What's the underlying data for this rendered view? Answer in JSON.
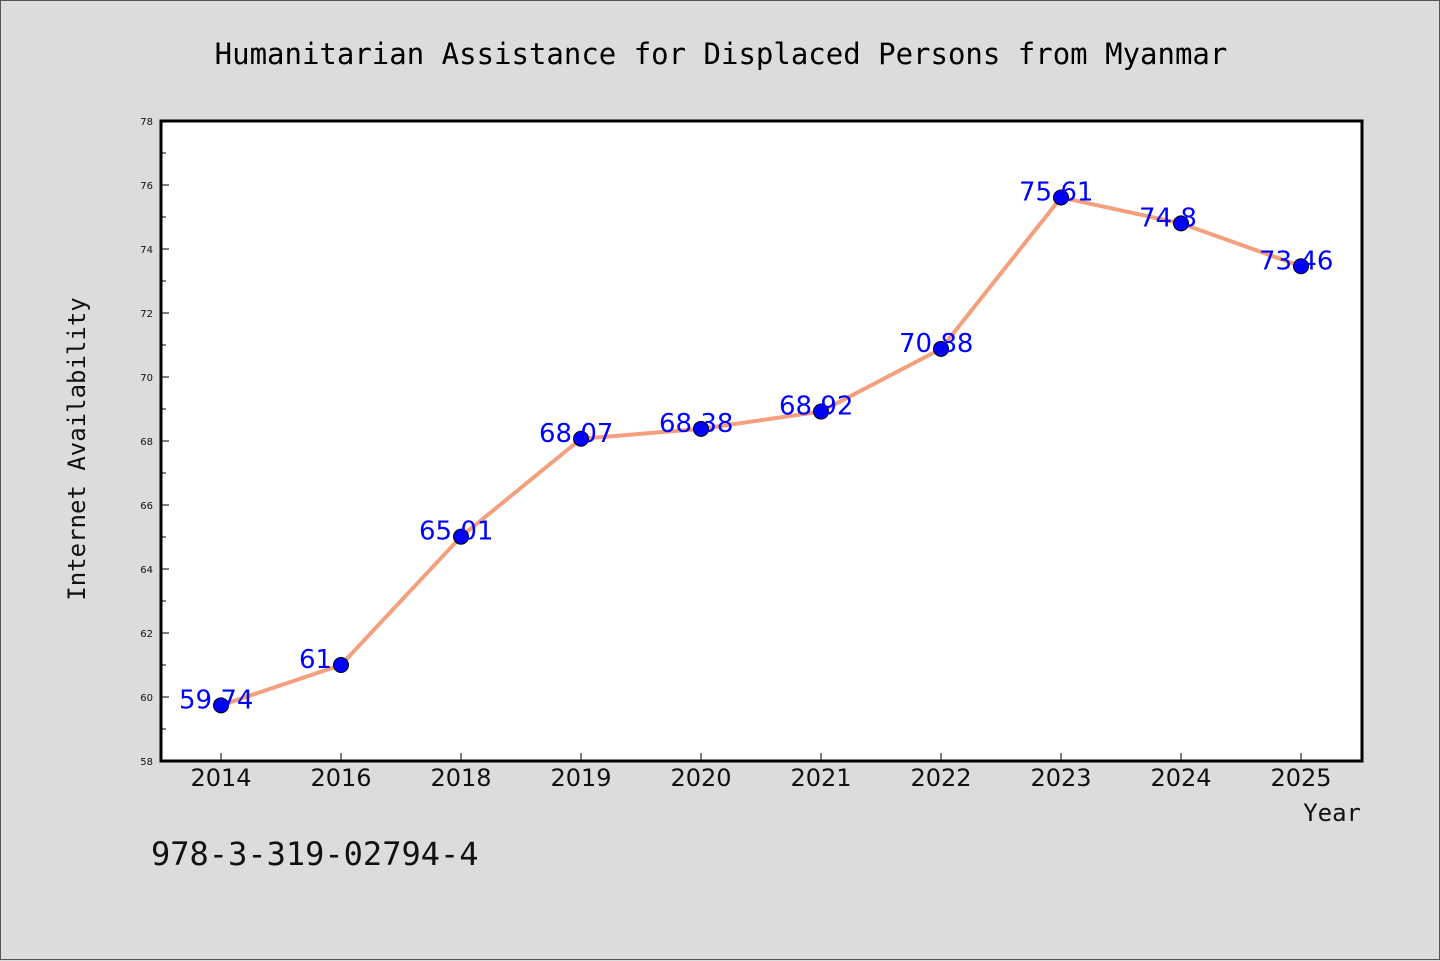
{
  "chart_data": {
    "type": "line",
    "title": "Humanitarian Assistance for Displaced Persons from Myanmar",
    "xlabel": "Year",
    "ylabel": "Internet Availability",
    "categories": [
      "2014",
      "2016",
      "2018",
      "2019",
      "2020",
      "2021",
      "2022",
      "2023",
      "2024",
      "2025"
    ],
    "values": [
      59.74,
      61,
      65.01,
      68.07,
      68.38,
      68.92,
      70.88,
      75.61,
      74.8,
      73.46
    ],
    "data_labels": [
      "59.74",
      "61",
      "65.01",
      "68.07",
      "68.38",
      "68.92",
      "70.88",
      "75.61",
      "74.8",
      "73.46"
    ],
    "ylim": [
      58,
      78
    ],
    "yticks": [
      "58",
      "60",
      "62",
      "64",
      "66",
      "68",
      "70",
      "72",
      "74",
      "76",
      "78"
    ],
    "grid": false,
    "line_color": "#f4a07e",
    "marker_color": "#0000ff",
    "label_color": "#0000ff"
  },
  "footer": {
    "isbn": "978-3-319-02794-4"
  }
}
